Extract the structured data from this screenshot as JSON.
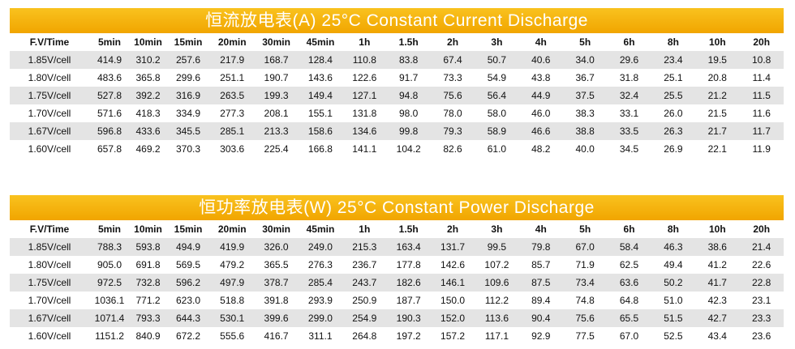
{
  "tables": [
    {
      "title": "恒流放电表(A) 25°C Constant Current Discharge",
      "header": [
        "F.V/Time",
        "5min",
        "10min",
        "15min",
        "20min",
        "30min",
        "45min",
        "1h",
        "1.5h",
        "2h",
        "3h",
        "4h",
        "5h",
        "6h",
        "8h",
        "10h",
        "20h"
      ],
      "rows": [
        [
          "1.85V/cell",
          "414.9",
          "310.2",
          "257.6",
          "217.9",
          "168.7",
          "128.4",
          "110.8",
          "83.8",
          "67.4",
          "50.7",
          "40.6",
          "34.0",
          "29.6",
          "23.4",
          "19.5",
          "10.8"
        ],
        [
          "1.80V/cell",
          "483.6",
          "365.8",
          "299.6",
          "251.1",
          "190.7",
          "143.6",
          "122.6",
          "91.7",
          "73.3",
          "54.9",
          "43.8",
          "36.7",
          "31.8",
          "25.1",
          "20.8",
          "11.4"
        ],
        [
          "1.75V/cell",
          "527.8",
          "392.2",
          "316.9",
          "263.5",
          "199.3",
          "149.4",
          "127.1",
          "94.8",
          "75.6",
          "56.4",
          "44.9",
          "37.5",
          "32.4",
          "25.5",
          "21.2",
          "11.5"
        ],
        [
          "1.70V/cell",
          "571.6",
          "418.3",
          "334.9",
          "277.3",
          "208.1",
          "155.1",
          "131.8",
          "98.0",
          "78.0",
          "58.0",
          "46.0",
          "38.3",
          "33.1",
          "26.0",
          "21.5",
          "11.6"
        ],
        [
          "1.67V/cell",
          "596.8",
          "433.6",
          "345.5",
          "285.1",
          "213.3",
          "158.6",
          "134.6",
          "99.8",
          "79.3",
          "58.9",
          "46.6",
          "38.8",
          "33.5",
          "26.3",
          "21.7",
          "11.7"
        ],
        [
          "1.60V/cell",
          "657.8",
          "469.2",
          "370.3",
          "303.6",
          "225.4",
          "166.8",
          "141.1",
          "104.2",
          "82.6",
          "61.0",
          "48.2",
          "40.0",
          "34.5",
          "26.9",
          "22.1",
          "11.9"
        ]
      ]
    },
    {
      "title": "恒功率放电表(W) 25°C Constant Power Discharge",
      "header": [
        "F.V/Time",
        "5min",
        "10min",
        "15min",
        "20min",
        "30min",
        "45min",
        "1h",
        "1.5h",
        "2h",
        "3h",
        "4h",
        "5h",
        "6h",
        "8h",
        "10h",
        "20h"
      ],
      "rows": [
        [
          "1.85V/cell",
          "788.3",
          "593.8",
          "494.9",
          "419.9",
          "326.0",
          "249.0",
          "215.3",
          "163.4",
          "131.7",
          "99.5",
          "79.8",
          "67.0",
          "58.4",
          "46.3",
          "38.6",
          "21.4"
        ],
        [
          "1.80V/cell",
          "905.0",
          "691.8",
          "569.5",
          "479.2",
          "365.5",
          "276.3",
          "236.7",
          "177.8",
          "142.6",
          "107.2",
          "85.7",
          "71.9",
          "62.5",
          "49.4",
          "41.2",
          "22.6"
        ],
        [
          "1.75V/cell",
          "972.5",
          "732.8",
          "596.2",
          "497.9",
          "378.7",
          "285.4",
          "243.7",
          "182.6",
          "146.1",
          "109.6",
          "87.5",
          "73.4",
          "63.6",
          "50.2",
          "41.7",
          "22.8"
        ],
        [
          "1.70V/cell",
          "1036.1",
          "771.2",
          "623.0",
          "518.8",
          "391.8",
          "293.9",
          "250.9",
          "187.7",
          "150.0",
          "112.2",
          "89.4",
          "74.8",
          "64.8",
          "51.0",
          "42.3",
          "23.1"
        ],
        [
          "1.67V/cell",
          "1071.4",
          "793.3",
          "644.3",
          "530.1",
          "399.6",
          "299.0",
          "254.9",
          "190.3",
          "152.0",
          "113.6",
          "90.4",
          "75.6",
          "65.5",
          "51.5",
          "42.7",
          "23.3"
        ],
        [
          "1.60V/cell",
          "1151.2",
          "840.9",
          "672.2",
          "555.6",
          "416.7",
          "311.1",
          "264.8",
          "197.2",
          "157.2",
          "117.1",
          "92.9",
          "77.5",
          "67.0",
          "52.5",
          "43.4",
          "23.6"
        ]
      ]
    }
  ]
}
